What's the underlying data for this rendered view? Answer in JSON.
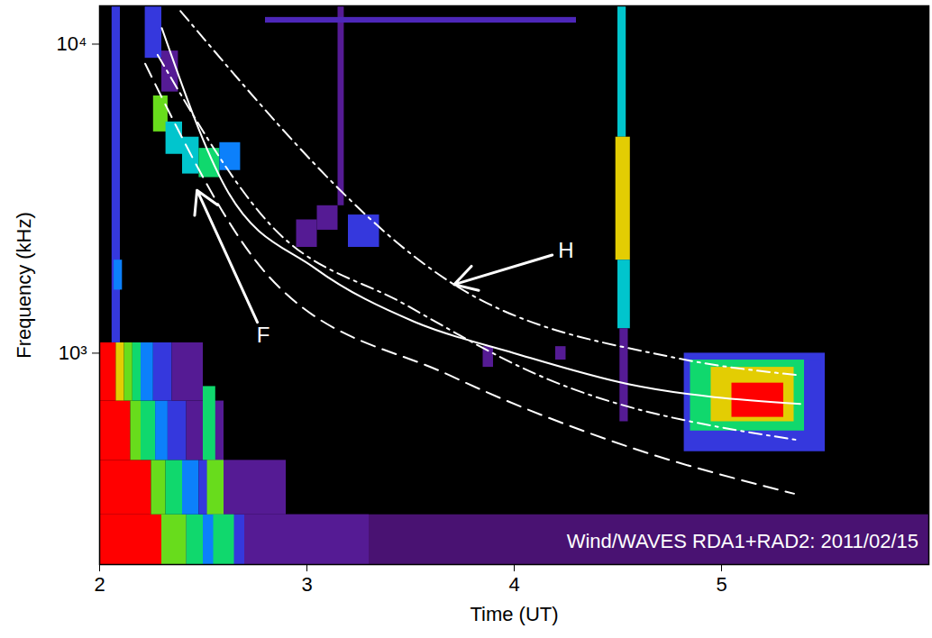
{
  "chart_data": {
    "type": "heatmap",
    "x_label": "Time (UT)",
    "y_label": "Frequency (kHz)",
    "log": "y",
    "grid": false,
    "xlim": [
      2,
      6
    ],
    "xticks": [
      2,
      3,
      4,
      5
    ],
    "ylim": [
      207,
      13300
    ],
    "yticks": [
      {
        "value": 1000,
        "label": "10³"
      },
      {
        "value": 10000,
        "label": "10⁴"
      }
    ],
    "intensity_range": [
      0,
      10
    ],
    "cells": [
      {
        "t0": 2.0,
        "t1": 6.0,
        "f0": 207,
        "f1": 300,
        "intensity": 1.5
      },
      {
        "t0": 2.0,
        "t1": 2.3,
        "f0": 207,
        "f1": 300,
        "intensity": 10
      },
      {
        "t0": 2.3,
        "t1": 2.42,
        "f0": 207,
        "f1": 300,
        "intensity": 7
      },
      {
        "t0": 2.42,
        "t1": 2.5,
        "f0": 207,
        "f1": 300,
        "intensity": 6
      },
      {
        "t0": 2.5,
        "t1": 2.58,
        "f0": 207,
        "f1": 300,
        "intensity": 4
      },
      {
        "t0": 2.58,
        "t1": 2.7,
        "f0": 207,
        "f1": 300,
        "intensity": 3
      },
      {
        "t0": 2.7,
        "t1": 3.3,
        "f0": 207,
        "f1": 300,
        "intensity": 2
      },
      {
        "t0": 2.0,
        "t1": 2.25,
        "f0": 300,
        "f1": 450,
        "intensity": 10
      },
      {
        "t0": 2.25,
        "t1": 2.32,
        "f0": 300,
        "f1": 450,
        "intensity": 7
      },
      {
        "t0": 2.32,
        "t1": 2.4,
        "f0": 300,
        "f1": 450,
        "intensity": 6
      },
      {
        "t0": 2.4,
        "t1": 2.48,
        "f0": 300,
        "f1": 450,
        "intensity": 4
      },
      {
        "t0": 2.48,
        "t1": 2.6,
        "f0": 300,
        "f1": 450,
        "intensity": 3
      },
      {
        "t0": 2.6,
        "t1": 2.9,
        "f0": 300,
        "f1": 450,
        "intensity": 2
      },
      {
        "t0": 2.0,
        "t1": 2.15,
        "f0": 450,
        "f1": 700,
        "intensity": 10
      },
      {
        "t0": 2.15,
        "t1": 2.2,
        "f0": 450,
        "f1": 700,
        "intensity": 7
      },
      {
        "t0": 2.2,
        "t1": 2.27,
        "f0": 450,
        "f1": 700,
        "intensity": 6
      },
      {
        "t0": 2.27,
        "t1": 2.33,
        "f0": 450,
        "f1": 700,
        "intensity": 4
      },
      {
        "t0": 2.33,
        "t1": 2.42,
        "f0": 450,
        "f1": 700,
        "intensity": 3
      },
      {
        "t0": 2.42,
        "t1": 2.6,
        "f0": 450,
        "f1": 700,
        "intensity": 2
      },
      {
        "t0": 2.0,
        "t1": 2.08,
        "f0": 700,
        "f1": 1080,
        "intensity": 10
      },
      {
        "t0": 2.08,
        "t1": 2.12,
        "f0": 700,
        "f1": 1080,
        "intensity": 8
      },
      {
        "t0": 2.12,
        "t1": 2.16,
        "f0": 700,
        "f1": 1080,
        "intensity": 7
      },
      {
        "t0": 2.16,
        "t1": 2.2,
        "f0": 700,
        "f1": 1080,
        "intensity": 6
      },
      {
        "t0": 2.2,
        "t1": 2.26,
        "f0": 700,
        "f1": 1080,
        "intensity": 4
      },
      {
        "t0": 2.26,
        "t1": 2.35,
        "f0": 700,
        "f1": 1080,
        "intensity": 3
      },
      {
        "t0": 2.35,
        "t1": 2.5,
        "f0": 700,
        "f1": 1080,
        "intensity": 2
      },
      {
        "t0": 2.5,
        "t1": 2.56,
        "f0": 450,
        "f1": 780,
        "intensity": 6
      },
      {
        "t0": 2.52,
        "t1": 2.6,
        "f0": 300,
        "f1": 450,
        "intensity": 7
      },
      {
        "t0": 2.55,
        "t1": 2.65,
        "f0": 207,
        "f1": 300,
        "intensity": 6
      },
      {
        "t0": 2.06,
        "t1": 2.1,
        "f0": 1080,
        "f1": 13300,
        "intensity": 3
      },
      {
        "t0": 2.07,
        "t1": 2.11,
        "f0": 1600,
        "f1": 2000,
        "intensity": 4
      },
      {
        "t0": 2.22,
        "t1": 2.3,
        "f0": 9000,
        "f1": 13300,
        "intensity": 3
      },
      {
        "t0": 2.3,
        "t1": 2.38,
        "f0": 7000,
        "f1": 9500,
        "intensity": 2
      },
      {
        "t0": 2.26,
        "t1": 2.33,
        "f0": 5200,
        "f1": 6800,
        "intensity": 7
      },
      {
        "t0": 2.32,
        "t1": 2.4,
        "f0": 4400,
        "f1": 5600,
        "intensity": 5
      },
      {
        "t0": 2.4,
        "t1": 2.48,
        "f0": 3800,
        "f1": 5000,
        "intensity": 5
      },
      {
        "t0": 2.48,
        "t1": 2.58,
        "f0": 3700,
        "f1": 4600,
        "intensity": 6
      },
      {
        "t0": 2.58,
        "t1": 2.68,
        "f0": 3900,
        "f1": 4800,
        "intensity": 4
      },
      {
        "t0": 2.95,
        "t1": 3.05,
        "f0": 2200,
        "f1": 2700,
        "intensity": 2
      },
      {
        "t0": 3.05,
        "t1": 3.15,
        "f0": 2500,
        "f1": 3000,
        "intensity": 2
      },
      {
        "t0": 3.2,
        "t1": 3.35,
        "f0": 2200,
        "f1": 2800,
        "intensity": 3
      },
      {
        "t0": 3.85,
        "t1": 3.9,
        "f0": 900,
        "f1": 1050,
        "intensity": 2
      },
      {
        "t0": 4.2,
        "t1": 4.25,
        "f0": 950,
        "f1": 1050,
        "intensity": 2
      },
      {
        "t0": 3.15,
        "t1": 3.18,
        "f0": 3000,
        "f1": 13300,
        "intensity": 2
      },
      {
        "t0": 2.8,
        "t1": 4.3,
        "f0": 11700,
        "f1": 12200,
        "intensity": 2.5
      },
      {
        "t0": 4.5,
        "t1": 4.54,
        "f0": 5000,
        "f1": 13300,
        "intensity": 5
      },
      {
        "t0": 4.49,
        "t1": 4.56,
        "f0": 2000,
        "f1": 5000,
        "intensity": 8
      },
      {
        "t0": 4.5,
        "t1": 4.56,
        "f0": 1200,
        "f1": 2000,
        "intensity": 5
      },
      {
        "t0": 4.51,
        "t1": 4.55,
        "f0": 600,
        "f1": 1200,
        "intensity": 2
      },
      {
        "t0": 4.82,
        "t1": 5.5,
        "f0": 480,
        "f1": 1000,
        "intensity": 3
      },
      {
        "t0": 4.85,
        "t1": 5.4,
        "f0": 560,
        "f1": 950,
        "intensity": 6
      },
      {
        "t0": 4.95,
        "t1": 5.35,
        "f0": 600,
        "f1": 900,
        "intensity": 8
      },
      {
        "t0": 5.05,
        "t1": 5.3,
        "f0": 620,
        "f1": 800,
        "intensity": 10
      },
      {
        "t0": 5.43,
        "t1": 5.48,
        "f0": 850,
        "f1": 950,
        "intensity": 3
      }
    ],
    "series": [
      {
        "color": "white",
        "line_style": "solid",
        "x": [
          2.3,
          2.61,
          3.04,
          3.52,
          4.0,
          4.55,
          5.38
        ],
        "values": [
          11270,
          3410,
          1880,
          1262,
          1000,
          794,
          685
        ]
      },
      {
        "color": "white",
        "line_style": "dashdot",
        "x": [
          2.39,
          3.71,
          4.77,
          5.38
        ],
        "values": [
          12800,
          1667,
          968,
          847
        ]
      },
      {
        "color": "white",
        "line_style": "dashdot",
        "x": [
          2.28,
          2.82,
          3.47,
          4.12,
          5.38
        ],
        "values": [
          9230,
          2620,
          1442,
          847,
          522
        ]
      },
      {
        "color": "white",
        "line_style": "dashed",
        "x": [
          2.22,
          2.82,
          3.69,
          4.55,
          5.35
        ],
        "values": [
          8640,
          1760,
          847,
          498,
          351
        ]
      }
    ],
    "annotations": [
      {
        "text": "F",
        "x": 2.79,
        "y": 1142,
        "arrow_to": [
          2.47,
          3365
        ]
      },
      {
        "text": "H",
        "x": 4.25,
        "y": 2143,
        "arrow_to": [
          3.71,
          1667
        ]
      },
      {
        "text": "Wind/WAVES RDA1+RAD2: 2011/02/15",
        "x": 5.95,
        "y": 245
      }
    ]
  }
}
